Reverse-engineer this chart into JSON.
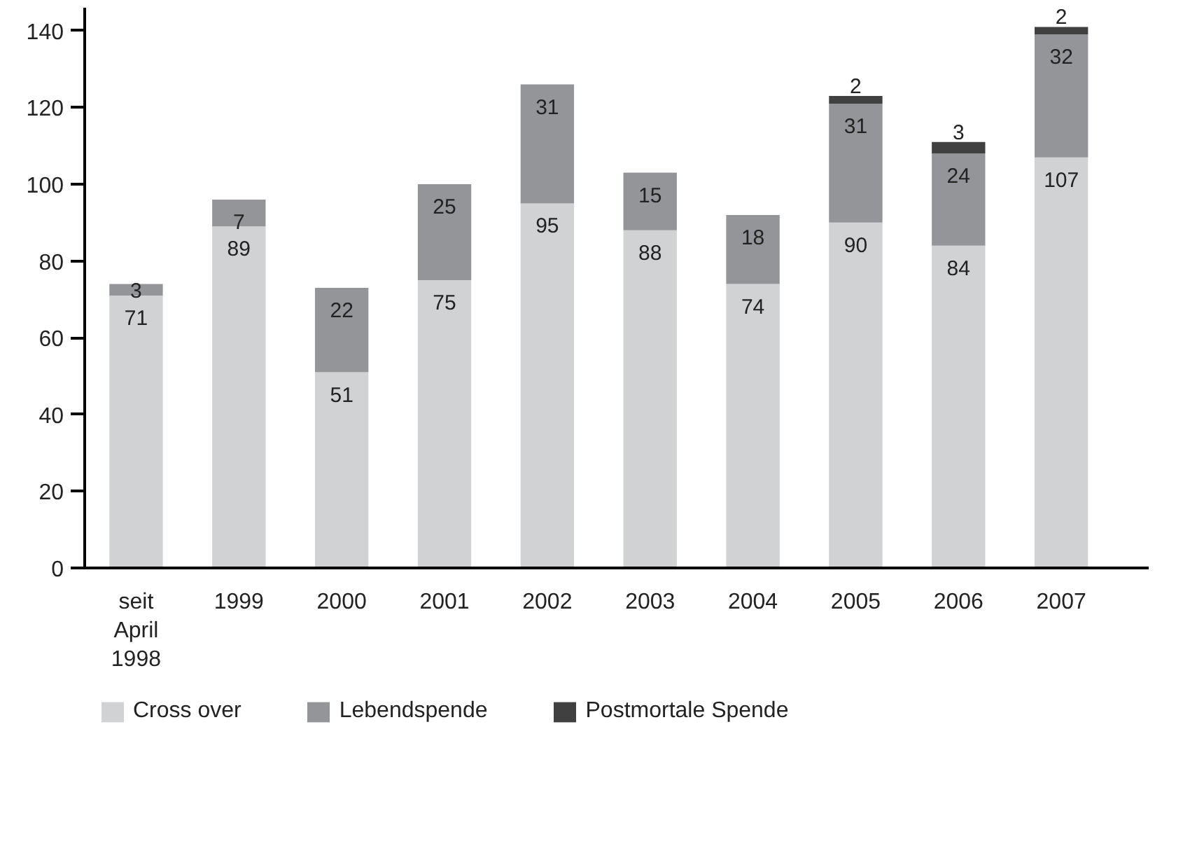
{
  "chart_data": {
    "type": "bar",
    "stacked": true,
    "categories": [
      "seit April 1998",
      "1999",
      "2000",
      "2001",
      "2002",
      "2003",
      "2004",
      "2005",
      "2006",
      "2007"
    ],
    "series": [
      {
        "name": "Cross over",
        "color": "#d1d2d4",
        "values": [
          71,
          89,
          51,
          75,
          95,
          88,
          74,
          90,
          84,
          107
        ]
      },
      {
        "name": "Lebendspende",
        "color": "#939598",
        "values": [
          3,
          7,
          22,
          25,
          31,
          15,
          18,
          31,
          24,
          32
        ]
      },
      {
        "name": "Postmortale Spende",
        "color": "#404040",
        "values": [
          null,
          null,
          null,
          null,
          null,
          null,
          null,
          2,
          3,
          2
        ]
      }
    ],
    "ylim": [
      0,
      146
    ],
    "yticks": [
      0,
      20,
      40,
      60,
      80,
      100,
      120,
      140
    ],
    "data_labels": true,
    "grid": false,
    "legend": "bottom"
  }
}
